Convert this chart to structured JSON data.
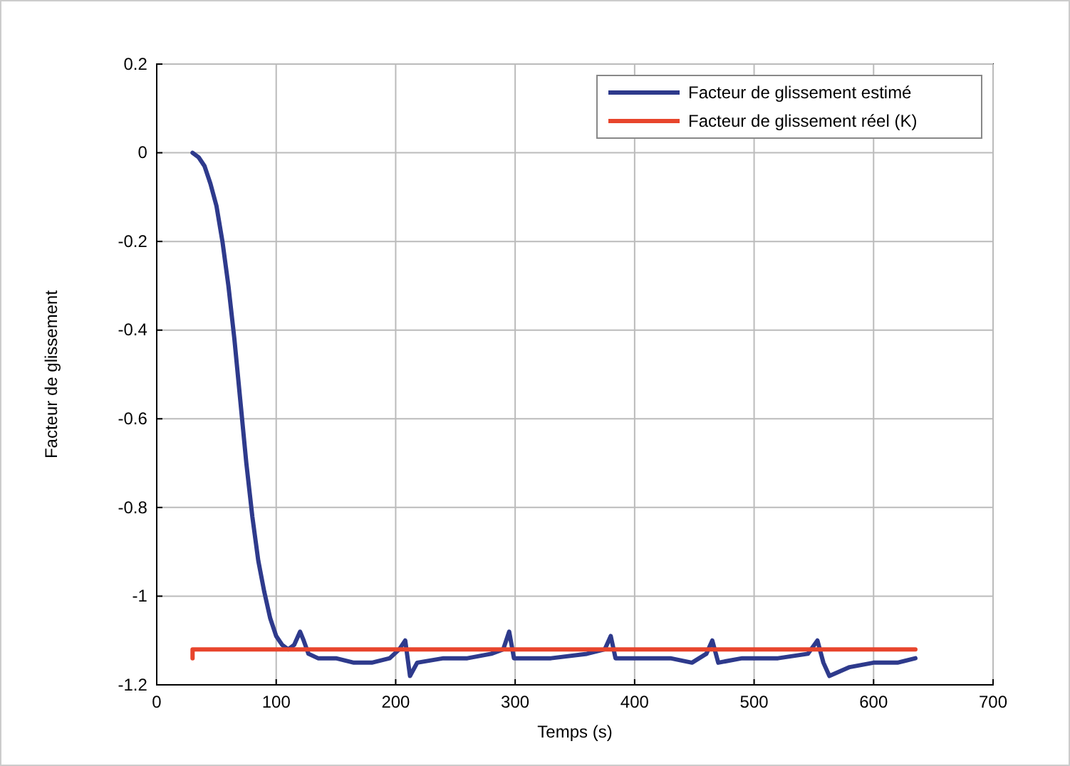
{
  "chart_data": {
    "type": "line",
    "xlabel": "Temps (s)",
    "ylabel": "Facteur de glissement",
    "xlim": [
      0,
      700
    ],
    "ylim": [
      -1.2,
      0.2
    ],
    "xticks": [
      0,
      100,
      200,
      300,
      400,
      500,
      600,
      700
    ],
    "yticks": [
      -1.2,
      -1,
      -0.8,
      -0.6,
      -0.4,
      -0.2,
      0,
      0.2
    ],
    "grid": true,
    "legend": "top right",
    "line_style": "solid",
    "marker": "none",
    "series": [
      {
        "name": "Facteur de glissement estimé",
        "color": "#2e3a8c",
        "x": [
          30,
          35,
          40,
          45,
          50,
          55,
          60,
          65,
          70,
          75,
          80,
          85,
          90,
          95,
          100,
          105,
          110,
          115,
          120,
          123,
          127,
          135,
          150,
          165,
          180,
          195,
          203,
          208,
          212,
          218,
          240,
          260,
          280,
          290,
          295,
          299,
          305,
          330,
          360,
          375,
          380,
          384,
          400,
          430,
          448,
          460,
          465,
          470,
          490,
          520,
          545,
          553,
          558,
          563,
          580,
          600,
          620,
          635
        ],
        "values": [
          0,
          -0.01,
          -0.03,
          -0.07,
          -0.12,
          -0.2,
          -0.3,
          -0.42,
          -0.56,
          -0.7,
          -0.82,
          -0.92,
          -0.99,
          -1.05,
          -1.09,
          -1.11,
          -1.12,
          -1.11,
          -1.08,
          -1.1,
          -1.13,
          -1.14,
          -1.14,
          -1.15,
          -1.15,
          -1.14,
          -1.12,
          -1.1,
          -1.18,
          -1.15,
          -1.14,
          -1.14,
          -1.13,
          -1.12,
          -1.08,
          -1.14,
          -1.14,
          -1.14,
          -1.13,
          -1.12,
          -1.09,
          -1.14,
          -1.14,
          -1.14,
          -1.15,
          -1.13,
          -1.1,
          -1.15,
          -1.14,
          -1.14,
          -1.13,
          -1.1,
          -1.15,
          -1.18,
          -1.16,
          -1.15,
          -1.15,
          -1.14
        ]
      },
      {
        "name": "Facteur de glissement réel (K)",
        "color": "#e8452c",
        "x": [
          30,
          30,
          635
        ],
        "values": [
          -1.14,
          -1.12,
          -1.12
        ]
      }
    ]
  }
}
